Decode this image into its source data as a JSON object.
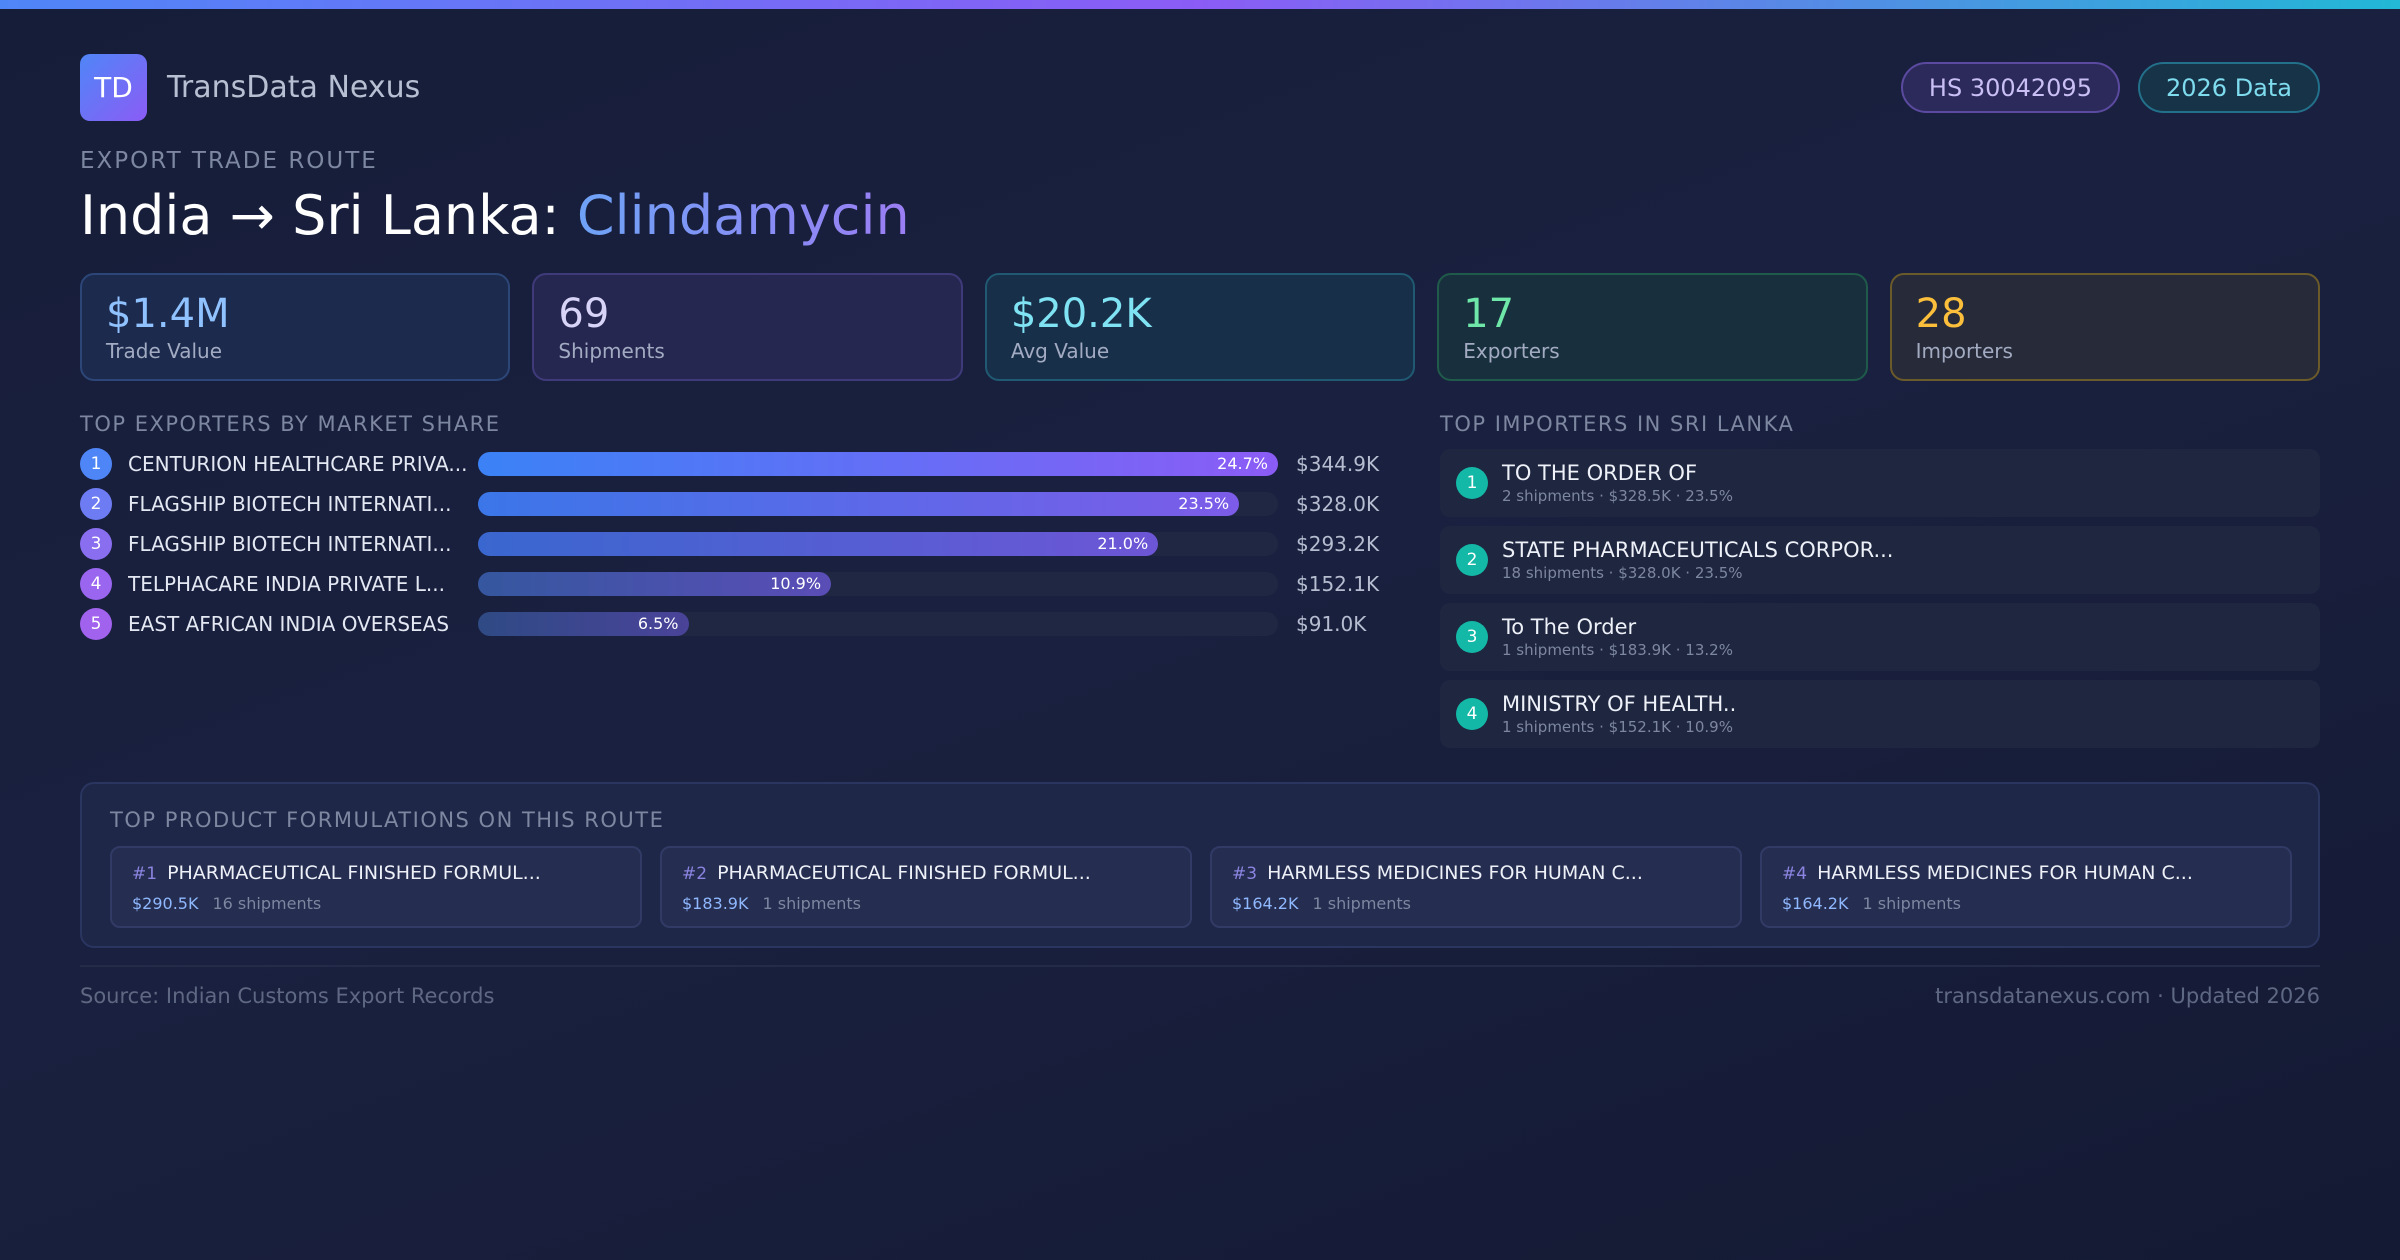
{
  "brand": {
    "logo_text": "TD",
    "name": "TransData Nexus"
  },
  "badges": {
    "hs_code": "HS 30042095",
    "year": "2026 Data"
  },
  "route": {
    "eyebrow": "EXPORT TRADE ROUTE",
    "title_prefix": "India → Sri Lanka: ",
    "product": "Clindamycin"
  },
  "kpis": [
    {
      "value": "$1.4M",
      "label": "Trade Value",
      "color": "#8fc2ff"
    },
    {
      "value": "69",
      "label": "Shipments",
      "color": "#d7d4f7"
    },
    {
      "value": "$20.2K",
      "label": "Avg Value",
      "color": "#7fe3f3"
    },
    {
      "value": "17",
      "label": "Exporters",
      "color": "#6ee7a8"
    },
    {
      "value": "28",
      "label": "Importers",
      "color": "#fbbf3c"
    }
  ],
  "exporters": {
    "title": "TOP EXPORTERS BY MARKET SHARE",
    "items": [
      {
        "rank": "1",
        "name": "CENTURION HEALTHCARE PRIVA...",
        "share": 24.7,
        "share_label": "24.7%",
        "value": "$344.9K"
      },
      {
        "rank": "2",
        "name": "FLAGSHIP BIOTECH INTERNATI...",
        "share": 23.5,
        "share_label": "23.5%",
        "value": "$328.0K"
      },
      {
        "rank": "3",
        "name": "FLAGSHIP BIOTECH INTERNATI...",
        "share": 21.0,
        "share_label": "21.0%",
        "value": "$293.2K"
      },
      {
        "rank": "4",
        "name": "TELPHACARE INDIA PRIVATE L...",
        "share": 10.9,
        "share_label": "10.9%",
        "value": "$152.1K"
      },
      {
        "rank": "5",
        "name": "EAST AFRICAN INDIA OVERSEAS",
        "share": 6.5,
        "share_label": "6.5%",
        "value": "$91.0K"
      }
    ]
  },
  "importers": {
    "title": "TOP IMPORTERS IN SRI LANKA",
    "items": [
      {
        "rank": "1",
        "name": "TO THE ORDER OF",
        "meta": "2 shipments · $328.5K · 23.5%"
      },
      {
        "rank": "2",
        "name": "STATE  PHARMACEUTICALS CORPOR...",
        "meta": "18 shipments · $328.0K · 23.5%"
      },
      {
        "rank": "3",
        "name": "To The Order",
        "meta": "1 shipments · $183.9K · 13.2%"
      },
      {
        "rank": "4",
        "name": "MINISTRY OF HEALTH..",
        "meta": "1 shipments · $152.1K · 10.9%"
      }
    ]
  },
  "formulations": {
    "title": "TOP PRODUCT FORMULATIONS ON THIS ROUTE",
    "items": [
      {
        "num": "#1",
        "name": "PHARMACEUTICAL FINISHED FORMUL...",
        "value": "$290.5K",
        "shipments": "16 shipments"
      },
      {
        "num": "#2",
        "name": "PHARMACEUTICAL FINISHED FORMUL...",
        "value": "$183.9K",
        "shipments": "1 shipments"
      },
      {
        "num": "#3",
        "name": "HARMLESS MEDICINES FOR HUMAN C...",
        "value": "$164.2K",
        "shipments": "1 shipments"
      },
      {
        "num": "#4",
        "name": "HARMLESS MEDICINES FOR HUMAN C...",
        "value": "$164.2K",
        "shipments": "1 shipments"
      }
    ]
  },
  "footer": {
    "source": "Source: Indian Customs Export Records",
    "site": "transdatanexus.com · Updated 2026"
  }
}
